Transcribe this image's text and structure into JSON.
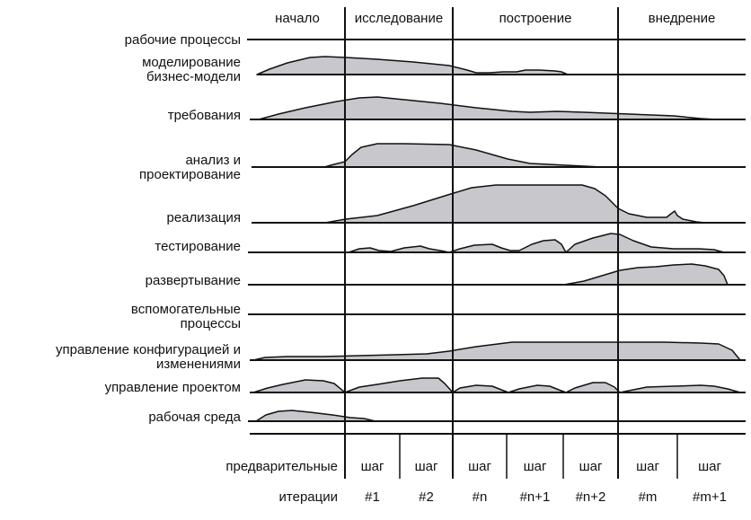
{
  "phases": [
    {
      "label": "начало"
    },
    {
      "label": "исследование"
    },
    {
      "label": "построение"
    },
    {
      "label": "внедрение"
    }
  ],
  "groups": {
    "core": "рабочие процессы",
    "supporting": "вспомогательные процессы"
  },
  "disciplines": [
    {
      "label": "моделирование бизнес-модели"
    },
    {
      "label": "требования"
    },
    {
      "label": "анализ и проектирование"
    },
    {
      "label": "реализация"
    },
    {
      "label": "тестирование"
    },
    {
      "label": "развертывание"
    },
    {
      "label": "управление конфигурацией и изменениями"
    },
    {
      "label": "управление проектом"
    },
    {
      "label": "рабочая среда"
    }
  ],
  "iterations": [
    {
      "line1": "предварительные",
      "line2": "итерации"
    },
    {
      "line1": "шаг",
      "line2": "#1"
    },
    {
      "line1": "шаг",
      "line2": "#2"
    },
    {
      "line1": "шаг",
      "line2": "#n"
    },
    {
      "line1": "шаг",
      "line2": "#n+1"
    },
    {
      "line1": "шаг",
      "line2": "#n+2"
    },
    {
      "line1": "шаг",
      "line2": "#m"
    },
    {
      "line1": "шаг",
      "line2": "#m+1"
    }
  ],
  "colors": {
    "fill": "#c8c8cc",
    "line": "#111111"
  }
}
